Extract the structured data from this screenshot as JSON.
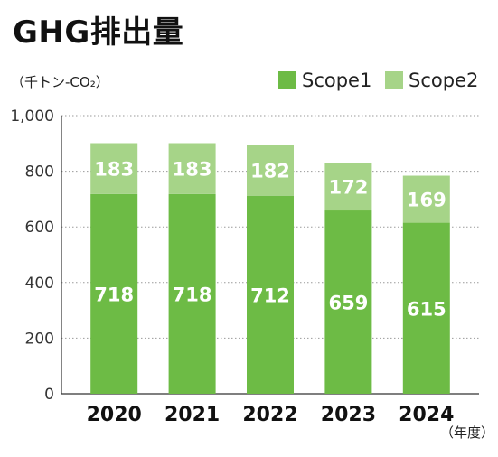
{
  "title": "GHG排出量",
  "unit_label": "（千トン-CO₂）",
  "x_unit_label": "（年度）",
  "chart_data": {
    "type": "bar",
    "stacked": true,
    "title": "GHG排出量",
    "ylabel": "（千トン-CO₂）",
    "xlabel": "（年度）",
    "categories": [
      "2020",
      "2021",
      "2022",
      "2023",
      "2024"
    ],
    "series": [
      {
        "name": "Scope1",
        "values": [
          718,
          718,
          712,
          659,
          615
        ],
        "color": "#6dbb45"
      },
      {
        "name": "Scope2",
        "values": [
          183,
          183,
          182,
          172,
          169
        ],
        "color": "#a6d488"
      }
    ],
    "ylim": [
      0,
      1000
    ],
    "yticks": [
      0,
      200,
      400,
      600,
      800,
      1000
    ],
    "ytick_labels": [
      "0",
      "200",
      "400",
      "600",
      "800",
      "1,000"
    ],
    "grid": true,
    "legend": "top-right"
  }
}
